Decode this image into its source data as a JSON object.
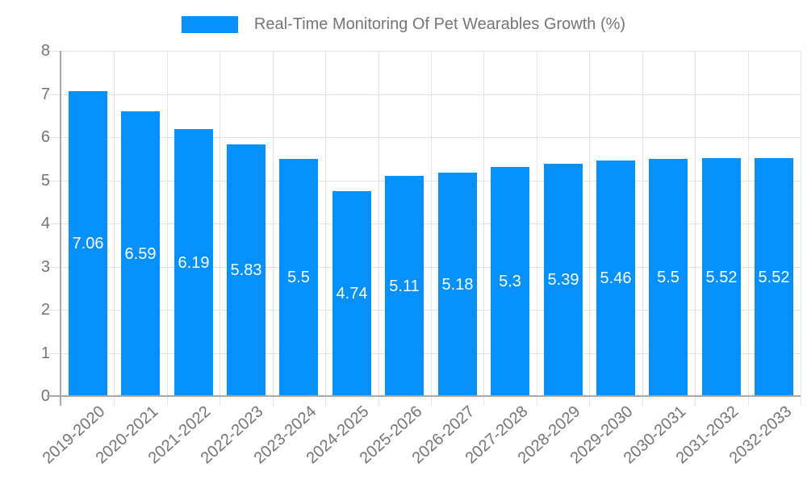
{
  "legend": {
    "label": "Real-Time Monitoring Of Pet Wearables Growth (%)"
  },
  "chart_data": {
    "type": "bar",
    "title": "Real-Time Monitoring Of Pet Wearables Growth (%)",
    "categories": [
      "2019-2020",
      "2020-2021",
      "2021-2022",
      "2022-2023",
      "2023-2024",
      "2024-2025",
      "2025-2026",
      "2026-2027",
      "2027-2028",
      "2028-2029",
      "2029-2030",
      "2030-2031",
      "2031-2032",
      "2032-2033"
    ],
    "values": [
      7.06,
      6.59,
      6.19,
      5.83,
      5.5,
      4.74,
      5.11,
      5.18,
      5.3,
      5.39,
      5.46,
      5.5,
      5.52,
      5.52
    ],
    "xlabel": "",
    "ylabel": "",
    "ylim": [
      0,
      8
    ],
    "yticks": [
      0,
      1,
      2,
      3,
      4,
      5,
      6,
      7,
      8
    ],
    "grid": true,
    "legend_position": "top",
    "value_labels_inside_bars": true,
    "colors": {
      "bar": "#0691fa",
      "bar_value_text": "#ffffff",
      "grid": "#e3e3e3",
      "axis": "#a8a8a8",
      "tick_text": "#757575"
    }
  }
}
